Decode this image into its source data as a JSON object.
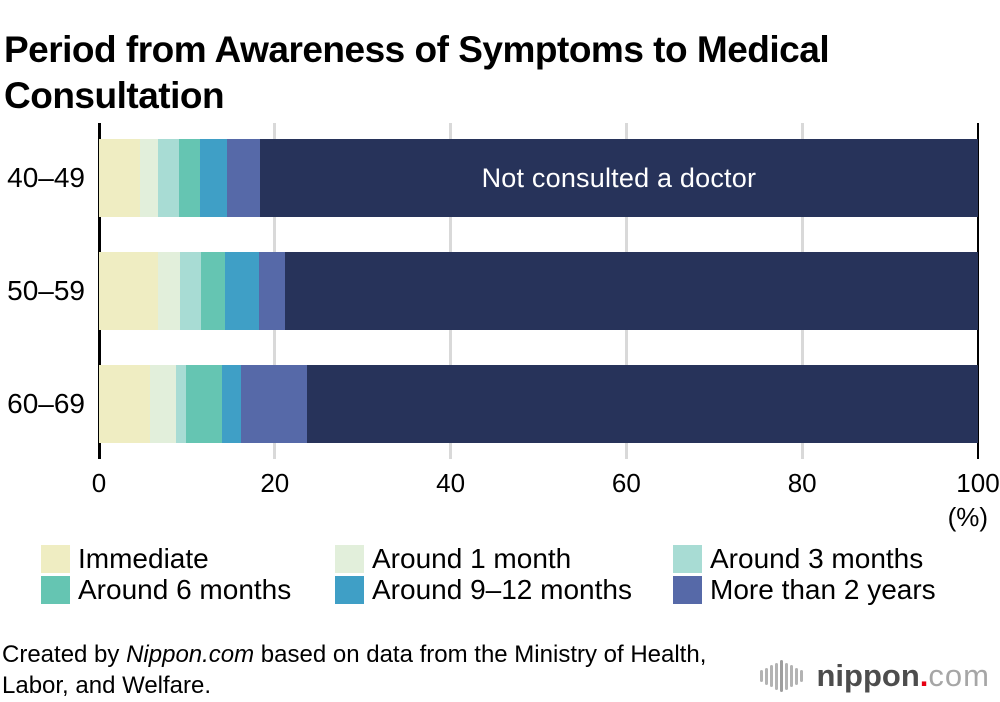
{
  "title": "Period from Awareness of Symptoms to Medical Consultation",
  "chart_data": {
    "type": "bar",
    "subtype": "horizontal-stacked",
    "title": "Period from Awareness of Symptoms to Medical Consultation",
    "categories": [
      "40–49",
      "50–59",
      "60–69"
    ],
    "series": [
      {
        "name": "Immediate",
        "color": "#efedc2",
        "values": [
          4.7,
          6.7,
          5.8
        ]
      },
      {
        "name": "Around 1 month",
        "color": "#e2efdb",
        "values": [
          2.0,
          2.5,
          3.0
        ]
      },
      {
        "name": "Around 3 months",
        "color": "#a8dcd4",
        "values": [
          2.4,
          2.4,
          1.1
        ]
      },
      {
        "name": "Around 6 months",
        "color": "#65c5b2",
        "values": [
          2.4,
          2.7,
          4.1
        ]
      },
      {
        "name": "Around 9–12 months",
        "color": "#3f9fc6",
        "values": [
          3.1,
          3.9,
          2.2
        ]
      },
      {
        "name": "More than 2 years",
        "color": "#5669a8",
        "values": [
          3.7,
          3.0,
          7.5
        ]
      },
      {
        "name": "Not consulted a doctor",
        "color": "#27335a",
        "values": [
          81.7,
          78.8,
          76.3
        ]
      }
    ],
    "annotation": {
      "text": "Not consulted a doctor",
      "row_index": 0,
      "series_index": 6
    },
    "xlabel": "(%)",
    "xlim": [
      0,
      100
    ],
    "xticks": [
      0,
      20,
      40,
      60,
      80,
      100
    ],
    "grid": true,
    "gridline_color": "#d9d9d9",
    "axis_color": "#000000",
    "legend_position": "bottom",
    "legend_series_indexes": [
      0,
      1,
      2,
      3,
      4,
      5
    ]
  },
  "legend": {
    "items": [
      {
        "label": "Immediate",
        "color": "#efedc2"
      },
      {
        "label": "Around 1 month",
        "color": "#e2efdb"
      },
      {
        "label": "Around 3 months",
        "color": "#a8dcd4"
      },
      {
        "label": "Around 6 months",
        "color": "#65c5b2"
      },
      {
        "label": "Around 9–12 months",
        "color": "#3f9fc6"
      },
      {
        "label": "More than 2 years",
        "color": "#5669a8"
      }
    ]
  },
  "footer": {
    "line1_prefix": "Created by ",
    "credit": "Nippon.com",
    "line1_suffix": " based on data from the Ministry of Health,",
    "line2": "Labor, and Welfare."
  },
  "logo": {
    "icon": "soundwave-icon",
    "wordmark": "nippon",
    "dot": ".",
    "tld": "com",
    "wordmark_color": "#4d4d4d",
    "dot_color": "#e60012",
    "tld_color": "#a6a6a6"
  }
}
